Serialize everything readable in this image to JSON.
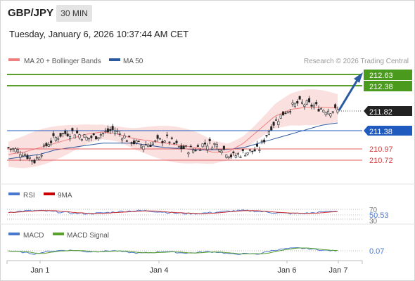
{
  "header": {
    "symbol": "GBP/JPY",
    "timeframe": "30 MIN",
    "datetime": "Tuesday, January 6, 2026 10:37:44 AM CET"
  },
  "legend": {
    "ma20": "MA 20 + Bollinger Bands",
    "ma50": "MA 50",
    "credit": "Research © 2026 Trading Central",
    "rsi": "RSI",
    "rsi_ma": "9MA",
    "macd": "MACD",
    "macd_signal": "MACD Signal"
  },
  "colors": {
    "ma20": "#f08080",
    "ma50": "#2c5aa0",
    "green": "#5aa02c",
    "red_level": "#e06060",
    "blue_level": "#1f5bbf",
    "candle": "#222222"
  },
  "price_levels": [
    {
      "label": "212.63",
      "value": 212.63,
      "kind": "target"
    },
    {
      "label": "212.38",
      "value": 212.38,
      "kind": "target"
    },
    {
      "label": "211.82",
      "value": 211.82,
      "kind": "current"
    },
    {
      "label": "211.38",
      "value": 211.38,
      "kind": "pivot"
    },
    {
      "label": "210.97",
      "value": 210.97,
      "kind": "support"
    },
    {
      "label": "210.72",
      "value": 210.72,
      "kind": "support"
    }
  ],
  "rsi_panel": {
    "upper": "70",
    "value": "50.53",
    "lower": "30"
  },
  "macd_panel": {
    "value": "0.07"
  },
  "x_axis": {
    "labels": [
      "Jan 1",
      "Jan 4",
      "Jan 6",
      "Jan 7"
    ]
  },
  "chart_data": {
    "type": "line",
    "title": "GBP/JPY",
    "xlabel": "",
    "ylabel": "",
    "ylim": [
      210.3,
      212.75
    ],
    "x_labels": [
      "Jan 1",
      "Jan 4",
      "Jan 6",
      "Jan 7"
    ],
    "series": [
      {
        "name": "MA 20",
        "values": [
          210.85,
          210.9,
          211.0,
          211.1,
          211.2,
          211.3,
          211.35,
          211.3,
          211.2,
          211.15,
          211.1,
          211.05,
          211.0,
          210.9,
          210.9,
          211.1,
          211.4,
          211.7,
          211.85,
          211.9,
          211.9,
          211.88
        ]
      },
      {
        "name": "MA 50",
        "values": [
          210.75,
          210.8,
          210.85,
          210.95,
          211.0,
          211.05,
          211.1,
          211.1,
          211.1,
          211.05,
          211.0,
          210.98,
          210.95,
          210.95,
          210.96,
          211.0,
          211.1,
          211.2,
          211.3,
          211.4,
          211.5,
          211.55
        ]
      }
    ],
    "price": [
      211.0,
      210.9,
      210.7,
      211.1,
      211.3,
      211.35,
      211.2,
      211.3,
      211.4,
      211.2,
      211.05,
      211.1,
      211.2,
      211.0,
      210.95,
      211.1,
      211.05,
      210.8,
      210.9,
      210.95,
      211.5,
      211.8,
      212.0,
      211.95,
      211.85,
      211.82
    ]
  }
}
